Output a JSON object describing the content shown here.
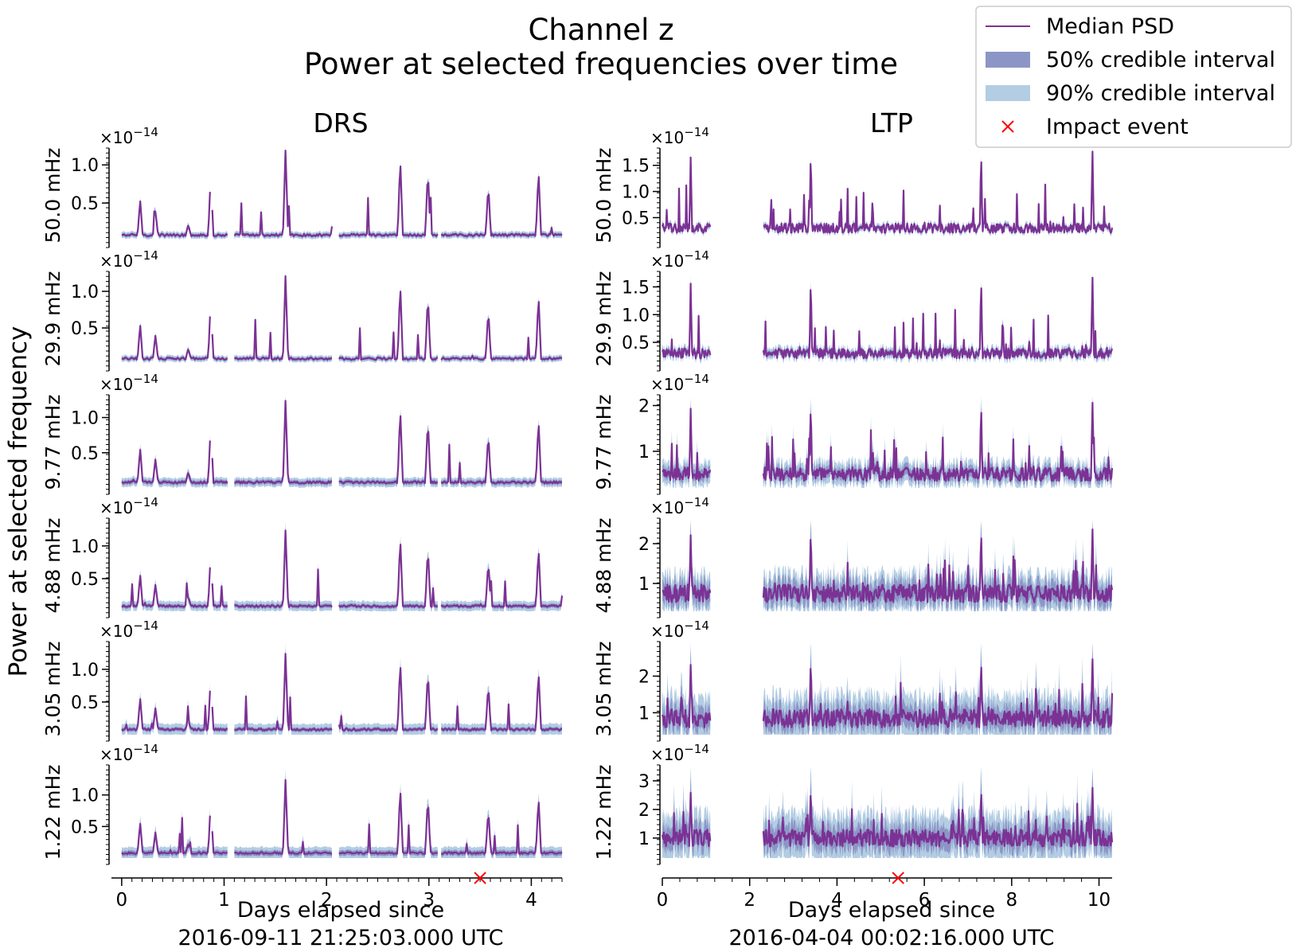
{
  "title": {
    "line1": "Channel z",
    "line2": "Power at selected frequencies over time"
  },
  "ylabel": "Power at selected frequency",
  "legend": {
    "items": [
      {
        "label": "Median PSD",
        "kind": "line",
        "color": "#7b3294"
      },
      {
        "label": "50% credible interval",
        "kind": "patch",
        "color": "#8c96c6"
      },
      {
        "label": "90% credible interval",
        "kind": "patch",
        "color": "#b3cde3"
      },
      {
        "label": "Impact event",
        "kind": "marker",
        "color": "#ff0000"
      }
    ]
  },
  "colors": {
    "median": "#7b3294",
    "ci50": "#8c96c6",
    "ci90": "#b3cde3",
    "impact": "#ff0000"
  },
  "scale_label": "×10",
  "scale_exp": "−14",
  "chart_data": [
    {
      "type": "line",
      "column_title": "DRS",
      "xlabel_line1": "Days elapsed since",
      "xlabel_line2": "2016-09-11 21:25:03.000 UTC",
      "xlim": [
        -0.1,
        4.3
      ],
      "xticks": [
        0,
        1,
        2,
        3,
        4
      ],
      "impact_x": 3.5,
      "gaps": [
        [
          0.87,
          0.88
        ],
        [
          1.04,
          1.1
        ],
        [
          2.06,
          2.12
        ],
        [
          3.09,
          3.12
        ]
      ],
      "peaks": [
        [
          0.18,
          0.55
        ],
        [
          0.33,
          0.4
        ],
        [
          0.65,
          0.22
        ],
        [
          0.87,
          0.9
        ],
        [
          1.6,
          1.2
        ],
        [
          2.72,
          1.1
        ],
        [
          2.99,
          0.95
        ],
        [
          3.58,
          0.75
        ],
        [
          4.07,
          0.95
        ]
      ],
      "panels": [
        {
          "freq_label": "50.0 mHz",
          "ylim": [
            0.0,
            1.2
          ],
          "yticks": [
            "0.5",
            "1.0"
          ],
          "ytick_vals": [
            0.5,
            1.0
          ],
          "median": [
            0.08,
            1.2
          ],
          "spread50": 0.02,
          "spread90": 0.04
        },
        {
          "freq_label": "29.9 mHz",
          "ylim": [
            0.0,
            1.25
          ],
          "yticks": [
            "0.5",
            "1.0"
          ],
          "ytick_vals": [
            0.5,
            1.0
          ],
          "median": [
            0.08,
            1.22
          ],
          "spread50": 0.02,
          "spread90": 0.04
        },
        {
          "freq_label": "9.77 mHz",
          "ylim": [
            0.0,
            1.3
          ],
          "yticks": [
            "0.5",
            "1.0"
          ],
          "ytick_vals": [
            0.5,
            1.0
          ],
          "median": [
            0.08,
            1.25
          ],
          "spread50": 0.03,
          "spread90": 0.06
        },
        {
          "freq_label": "4.88 mHz",
          "ylim": [
            0.0,
            1.4
          ],
          "yticks": [
            "0.5",
            "1.0"
          ],
          "ytick_vals": [
            0.5,
            1.0
          ],
          "median": [
            0.08,
            1.25
          ],
          "spread50": 0.03,
          "spread90": 0.07
        },
        {
          "freq_label": "3.05 mHz",
          "ylim": [
            0.0,
            1.4
          ],
          "yticks": [
            "0.5",
            "1.0"
          ],
          "ytick_vals": [
            0.5,
            1.0
          ],
          "median": [
            0.08,
            1.25
          ],
          "spread50": 0.03,
          "spread90": 0.08
        },
        {
          "freq_label": "1.22 mHz",
          "ylim": [
            0.0,
            1.45
          ],
          "yticks": [
            "0.5",
            "1.0"
          ],
          "ytick_vals": [
            0.5,
            1.0
          ],
          "median": [
            0.08,
            1.25
          ],
          "spread50": 0.04,
          "spread90": 0.09
        }
      ]
    },
    {
      "type": "line",
      "column_title": "LTP",
      "xlabel_line1": "Days elapsed since",
      "xlabel_line2": "2016-04-04 00:02:16.000 UTC",
      "xlim": [
        0,
        10.3
      ],
      "xticks": [
        0,
        2,
        4,
        6,
        8,
        10
      ],
      "impact_x": 5.4,
      "gaps": [
        [
          1.1,
          2.3
        ]
      ],
      "peaks": [
        [
          0.65,
          1.7
        ],
        [
          3.4,
          1.8
        ],
        [
          7.3,
          1.8
        ],
        [
          9.85,
          1.8
        ]
      ],
      "panels": [
        {
          "freq_label": "50.0 mHz",
          "ylim": [
            0.05,
            1.8
          ],
          "yticks": [
            "0.5",
            "1.0",
            "1.5"
          ],
          "ytick_vals": [
            0.5,
            1.0,
            1.5
          ],
          "median": [
            0.3,
            1.8
          ],
          "spread50": 0.03,
          "spread90": 0.06
        },
        {
          "freq_label": "29.9 mHz",
          "ylim": [
            0.1,
            1.75
          ],
          "yticks": [
            "0.5",
            "1.0",
            "1.5"
          ],
          "ytick_vals": [
            0.5,
            1.0,
            1.5
          ],
          "median": [
            0.3,
            1.7
          ],
          "spread50": 0.04,
          "spread90": 0.08
        },
        {
          "freq_label": "9.77 mHz",
          "ylim": [
            0.2,
            2.2
          ],
          "yticks": [
            "1",
            "2"
          ],
          "ytick_vals": [
            1,
            2
          ],
          "median": [
            0.5,
            2.1
          ],
          "spread50": 0.1,
          "spread90": 0.2
        },
        {
          "freq_label": "4.88 mHz",
          "ylim": [
            0.3,
            2.6
          ],
          "yticks": [
            "1",
            "2"
          ],
          "ytick_vals": [
            1,
            2
          ],
          "median": [
            0.75,
            2.4
          ],
          "spread50": 0.2,
          "spread90": 0.35
        },
        {
          "freq_label": "3.05 mHz",
          "ylim": [
            0.4,
            2.9
          ],
          "yticks": [
            "1",
            "2"
          ],
          "ytick_vals": [
            1,
            2
          ],
          "median": [
            0.85,
            2.5
          ],
          "spread50": 0.22,
          "spread90": 0.45
        },
        {
          "freq_label": "1.22 mHz",
          "ylim": [
            0.3,
            3.5
          ],
          "yticks": [
            "1",
            "2",
            "3"
          ],
          "ytick_vals": [
            1,
            2,
            3
          ],
          "median": [
            1.0,
            2.8
          ],
          "spread50": 0.3,
          "spread90": 0.6
        }
      ]
    }
  ]
}
